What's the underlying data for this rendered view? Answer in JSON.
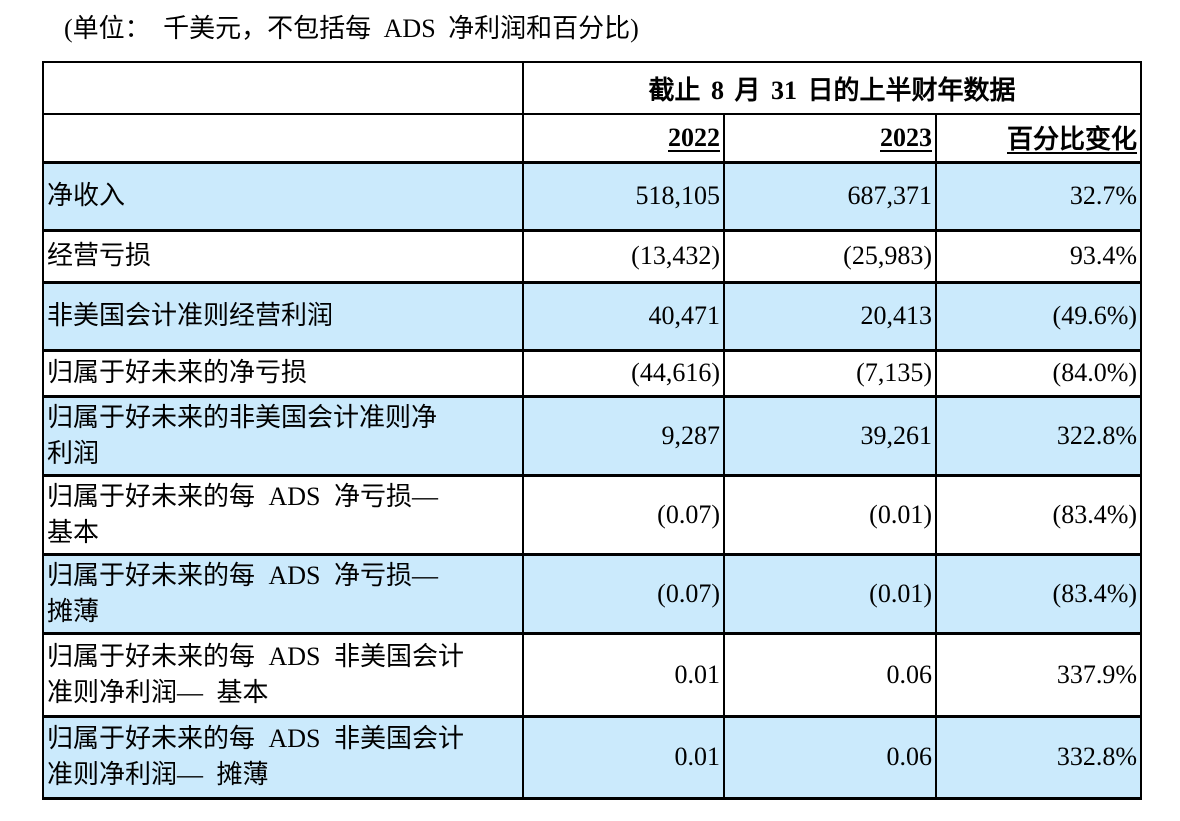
{
  "note": "(单位： 千美元，不包括每 ADS 净利润和百分比)",
  "colors": {
    "row_highlight": "#cbeafc",
    "border": "#000000"
  },
  "table": {
    "span_header": "截止 8 月 31 日的上半财年数据",
    "col_headers": {
      "y2022": "2022",
      "y2023": "2023",
      "pct": "百分比变化"
    },
    "rows": [
      {
        "label": "净收入",
        "v2022": "518,105",
        "v2023": "687,371",
        "pct": "32.7%"
      },
      {
        "label": "经营亏损",
        "v2022": "(13,432)",
        "v2023": "(25,983)",
        "pct": "93.4%"
      },
      {
        "label": "非美国会计准则经营利润",
        "v2022": "40,471",
        "v2023": "20,413",
        "pct": "(49.6%)"
      },
      {
        "label": "归属于好未来的净亏损",
        "v2022": "(44,616)",
        "v2023": "(7,135)",
        "pct": "(84.0%)"
      },
      {
        "label": "归属于好未来的非美国会计准则净\n利润",
        "v2022": "9,287",
        "v2023": "39,261",
        "pct": "322.8%"
      },
      {
        "label": "归属于好未来的每 ADS 净亏损—\n基本",
        "v2022": "(0.07)",
        "v2023": "(0.01)",
        "pct": "(83.4%)"
      },
      {
        "label": "归属于好未来的每 ADS 净亏损—\n摊薄",
        "v2022": "(0.07)",
        "v2023": "(0.01)",
        "pct": "(83.4%)"
      },
      {
        "label": "归属于好未来的每 ADS 非美国会计\n准则净利润— 基本",
        "v2022": "0.01",
        "v2023": "0.06",
        "pct": "337.9%"
      },
      {
        "label": "归属于好未来的每 ADS 非美国会计\n准则净利润— 摊薄",
        "v2022": "0.01",
        "v2023": "0.06",
        "pct": "332.8%"
      }
    ]
  }
}
